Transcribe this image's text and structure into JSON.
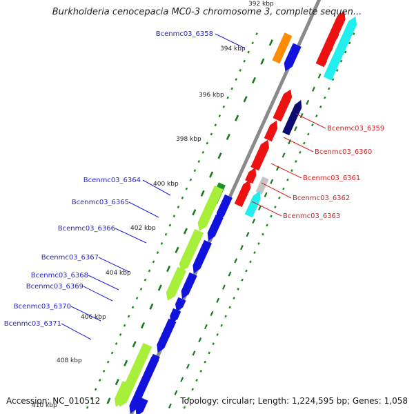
{
  "title": "Burkholderia cenocepacia MC0-3 chromosome 3, complete sequen...",
  "footer": {
    "accession": "Accession: NC_010512",
    "summary": "Topology: circular; Length: 1,224,595 bp; Genes: 1,058"
  },
  "colors": {
    "backbone": "#8a8a8a",
    "tick_dot": "#1a8a1a",
    "tick_mark": "#1a7a1a",
    "left_label": "#1f1fd6",
    "right_label": "#d61f1f",
    "scale_label": "#222222",
    "gene_blue": "#1212dd",
    "gene_yellowgreen": "#a8ef3a",
    "gene_red": "#ee1111",
    "gene_cyan": "#22eeee",
    "gene_navy": "#0c0c70",
    "gene_orange": "#ff8c00",
    "gene_gray": "#c4c4c4",
    "gene_darkgreen": "#1f8f2f"
  },
  "scale_labels": [
    {
      "text": "392 kbp",
      "kbp": 392
    },
    {
      "text": "394 kbp",
      "kbp": 394
    },
    {
      "text": "396 kbp",
      "kbp": 396
    },
    {
      "text": "398 kbp",
      "kbp": 398
    },
    {
      "text": "400 kbp",
      "kbp": 400
    },
    {
      "text": "402 kbp",
      "kbp": 402
    },
    {
      "text": "404 kbp",
      "kbp": 404
    },
    {
      "text": "406 kbp",
      "kbp": 406
    },
    {
      "text": "408 kbp",
      "kbp": 408
    },
    {
      "text": "410 kbp",
      "kbp": 410
    }
  ],
  "gene_labels_left": [
    "Bcenmc03_6358",
    "Bcenmc03_6364",
    "Bcenmc03_6365",
    "Bcenmc03_6366",
    "Bcenmc03_6367",
    "Bcenmc03_6368",
    "Bcenmc03_6369",
    "Bcenmc03_6370",
    "Bcenmc03_6371"
  ],
  "gene_labels_right": [
    "Bcenmc03_6359",
    "Bcenmc03_6360",
    "Bcenmc03_6361",
    "Bcenmc03_6362",
    "Bcenmc03_6363"
  ]
}
